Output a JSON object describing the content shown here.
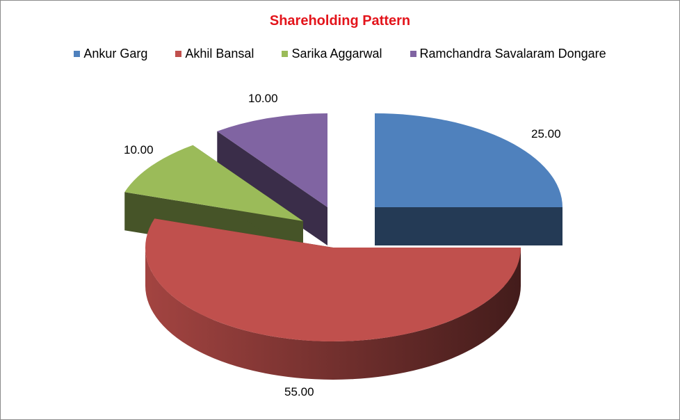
{
  "chart_data": {
    "type": "pie",
    "title": "Shareholding Pattern",
    "legend_position": "top",
    "exploded": true,
    "three_d": true,
    "slices": [
      {
        "label": "Ankur Garg",
        "value": 25.0,
        "value_label": "25.00",
        "color": "#4f81bd"
      },
      {
        "label": "Akhil Bansal",
        "value": 55.0,
        "value_label": "55.00",
        "color": "#c0504d"
      },
      {
        "label": "Sarika Aggarwal",
        "value": 10.0,
        "value_label": "10.00",
        "color": "#9bbb59"
      },
      {
        "label": "Ramchandra Savalaram Dongare",
        "value": 10.0,
        "value_label": "10.00",
        "color": "#8064a2"
      }
    ]
  }
}
